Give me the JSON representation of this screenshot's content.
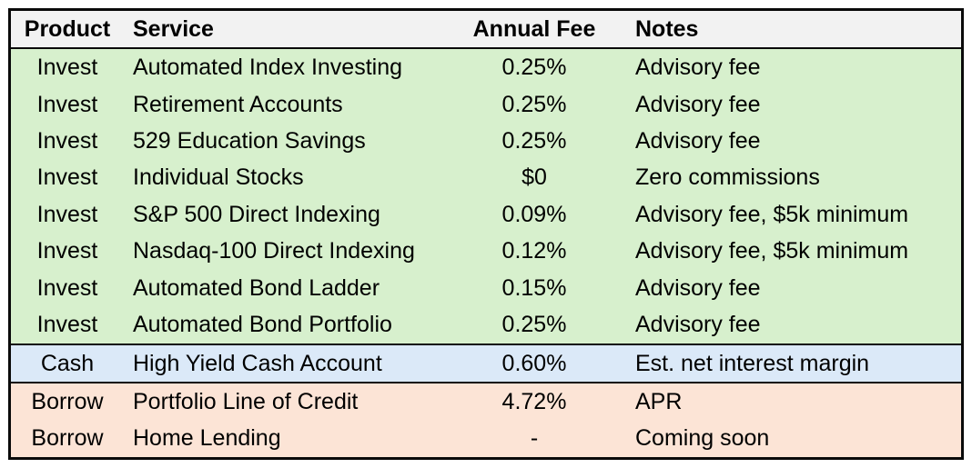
{
  "chart_data": {
    "type": "table",
    "columns": [
      "Product",
      "Service",
      "Annual Fee",
      "Notes"
    ],
    "rows": [
      {
        "product": "Invest",
        "service": "Automated Index Investing",
        "fee": "0.25%",
        "notes": "Advisory fee",
        "group": "invest"
      },
      {
        "product": "Invest",
        "service": "Retirement Accounts",
        "fee": "0.25%",
        "notes": "Advisory fee",
        "group": "invest"
      },
      {
        "product": "Invest",
        "service": "529 Education Savings",
        "fee": "0.25%",
        "notes": "Advisory fee",
        "group": "invest"
      },
      {
        "product": "Invest",
        "service": "Individual Stocks",
        "fee": "$0",
        "notes": "Zero commissions",
        "group": "invest"
      },
      {
        "product": "Invest",
        "service": "S&P 500 Direct Indexing",
        "fee": "0.09%",
        "notes": "Advisory fee, $5k minimum",
        "group": "invest"
      },
      {
        "product": "Invest",
        "service": "Nasdaq-100 Direct Indexing",
        "fee": "0.12%",
        "notes": "Advisory fee, $5k minimum",
        "group": "invest"
      },
      {
        "product": "Invest",
        "service": "Automated Bond Ladder",
        "fee": "0.15%",
        "notes": "Advisory fee",
        "group": "invest"
      },
      {
        "product": "Invest",
        "service": "Automated Bond Portfolio",
        "fee": "0.25%",
        "notes": "Advisory fee",
        "group": "invest"
      },
      {
        "product": "Cash",
        "service": "High Yield Cash Account",
        "fee": "0.60%",
        "notes": "Est. net interest margin",
        "group": "cash"
      },
      {
        "product": "Borrow",
        "service": "Portfolio Line of Credit",
        "fee": "4.72%",
        "notes": "APR",
        "group": "borrow"
      },
      {
        "product": "Borrow",
        "service": "Home Lending",
        "fee": "-",
        "notes": "Coming soon",
        "group": "borrow"
      }
    ]
  },
  "colors": {
    "header": "#f2f2f2",
    "invest": "#d7f0cd",
    "cash": "#dbe9f8",
    "borrow": "#fce4d6",
    "border": "#0a0a0a",
    "text": "#000000"
  }
}
